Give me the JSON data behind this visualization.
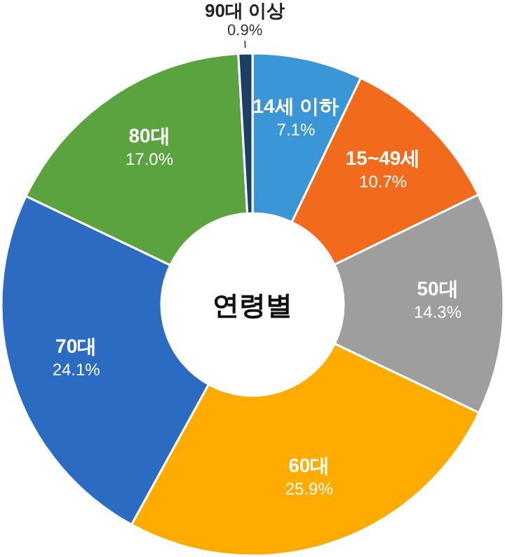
{
  "chart_data": {
    "type": "donut",
    "title": "연령별",
    "categories": [
      "14세 이하",
      "15~49세",
      "50대",
      "60대",
      "70대",
      "80대",
      "90대 이상"
    ],
    "values": [
      7.1,
      10.7,
      14.3,
      25.9,
      24.1,
      17.0,
      0.9
    ],
    "value_labels": [
      "7.1%",
      "10.7%",
      "14.3%",
      "25.9%",
      "24.1%",
      "17.0%",
      "0.9%"
    ],
    "colors": [
      "#3a96d6",
      "#f26b1d",
      "#9e9e9e",
      "#ffab00",
      "#2b6bc2",
      "#5aa33f",
      "#1d3f66"
    ]
  }
}
